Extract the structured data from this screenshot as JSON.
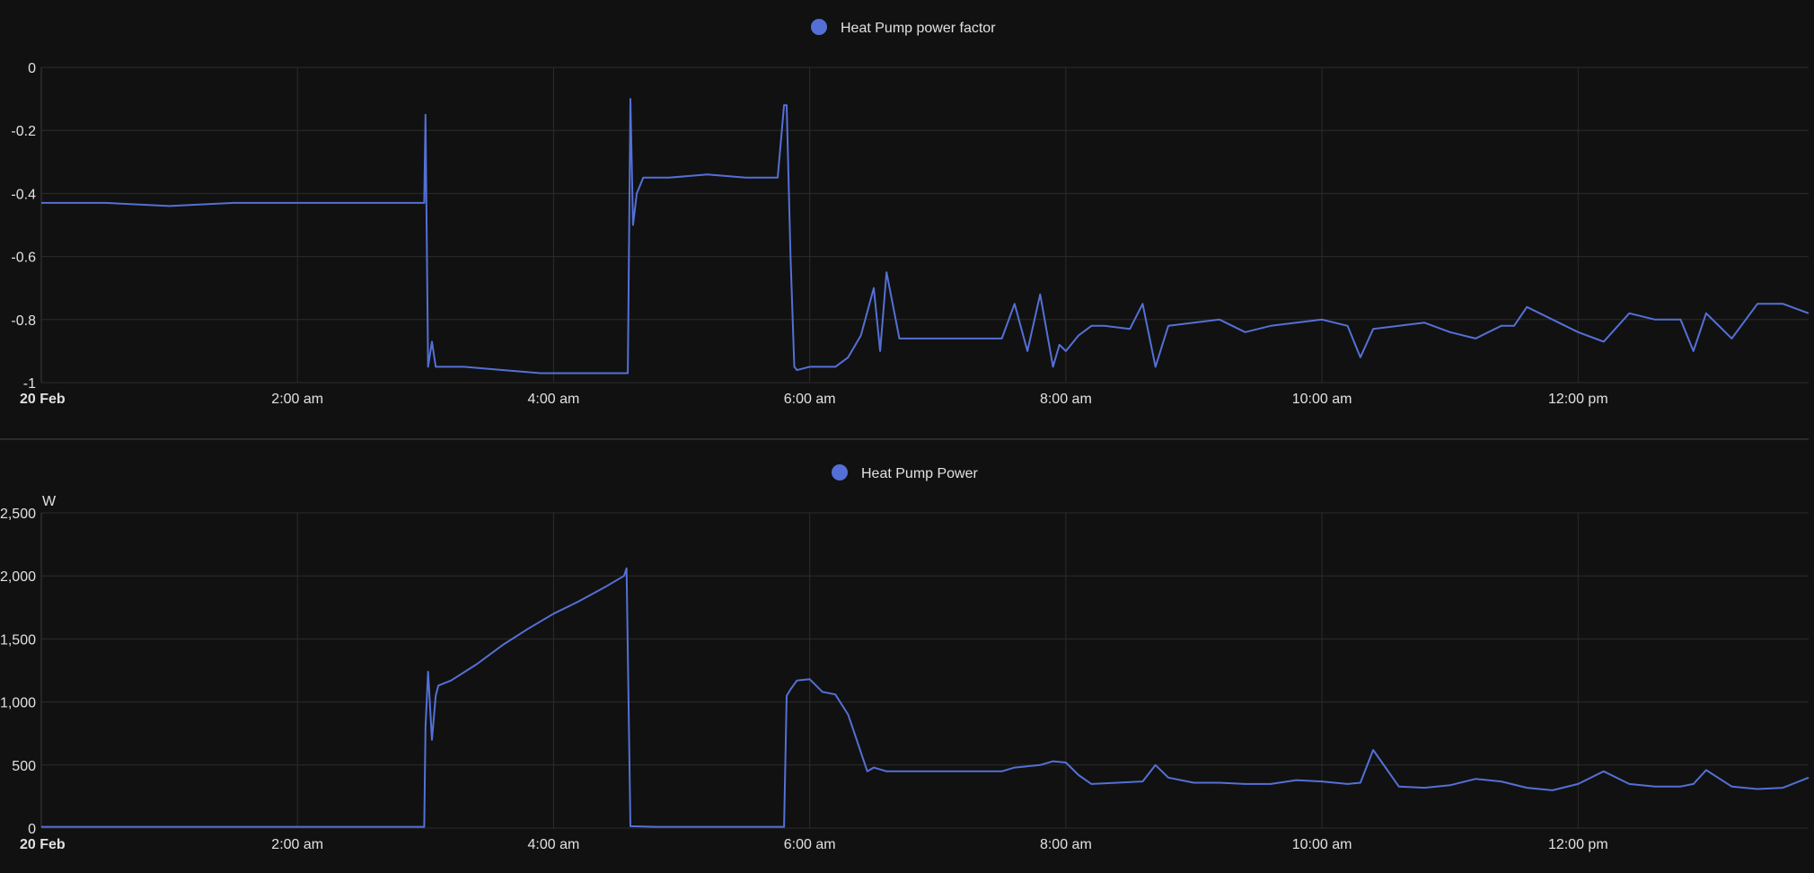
{
  "colors": {
    "background": "#111111",
    "series": "#5470d6",
    "grid": "#2c2c2c",
    "text": "#e1e1e1"
  },
  "chart_data": [
    {
      "type": "line",
      "legend": [
        "Heat Pump power factor"
      ],
      "legend_position": "top-center",
      "xlabel": "",
      "ylabel": "",
      "unit": "",
      "grid": true,
      "xlim": [
        0,
        13.8
      ],
      "ylim": [
        -1,
        0
      ],
      "x_ticks": [
        {
          "x": 0,
          "label": "20 Feb",
          "bold": true
        },
        {
          "x": 2,
          "label": "2:00 am",
          "bold": false
        },
        {
          "x": 4,
          "label": "4:00 am",
          "bold": false
        },
        {
          "x": 6,
          "label": "6:00 am",
          "bold": false
        },
        {
          "x": 8,
          "label": "8:00 am",
          "bold": false
        },
        {
          "x": 10,
          "label": "10:00 am",
          "bold": false
        },
        {
          "x": 12,
          "label": "12:00 pm",
          "bold": false
        }
      ],
      "y_ticks": [
        {
          "y": 0,
          "label": "0"
        },
        {
          "y": -0.2,
          "label": "-0.2"
        },
        {
          "y": -0.4,
          "label": "-0.4"
        },
        {
          "y": -0.6,
          "label": "-0.6"
        },
        {
          "y": -0.8,
          "label": "-0.8"
        },
        {
          "y": -1,
          "label": "-1"
        }
      ],
      "series": [
        {
          "name": "Heat Pump power factor",
          "x": [
            0,
            0.5,
            1.0,
            1.5,
            2.0,
            2.5,
            2.99,
            3.0,
            3.02,
            3.05,
            3.08,
            3.1,
            3.3,
            3.6,
            3.9,
            4.2,
            4.4,
            4.58,
            4.6,
            4.62,
            4.65,
            4.7,
            4.9,
            5.2,
            5.5,
            5.75,
            5.8,
            5.82,
            5.85,
            5.88,
            5.9,
            6.0,
            6.2,
            6.3,
            6.4,
            6.5,
            6.55,
            6.6,
            6.7,
            7.0,
            7.3,
            7.5,
            7.6,
            7.7,
            7.8,
            7.9,
            7.95,
            8.0,
            8.1,
            8.2,
            8.3,
            8.5,
            8.6,
            8.7,
            8.8,
            9.0,
            9.2,
            9.4,
            9.6,
            9.8,
            10.0,
            10.2,
            10.3,
            10.4,
            10.6,
            10.8,
            11.0,
            11.2,
            11.4,
            11.5,
            11.6,
            11.8,
            12.0,
            12.2,
            12.4,
            12.6,
            12.8,
            12.9,
            13.0,
            13.2,
            13.4,
            13.6,
            13.8
          ],
          "values": [
            -0.43,
            -0.43,
            -0.44,
            -0.43,
            -0.43,
            -0.43,
            -0.43,
            -0.15,
            -0.95,
            -0.87,
            -0.95,
            -0.95,
            -0.95,
            -0.96,
            -0.97,
            -0.97,
            -0.97,
            -0.97,
            -0.1,
            -0.5,
            -0.4,
            -0.35,
            -0.35,
            -0.34,
            -0.35,
            -0.35,
            -0.12,
            -0.12,
            -0.6,
            -0.95,
            -0.96,
            -0.95,
            -0.95,
            -0.92,
            -0.85,
            -0.7,
            -0.9,
            -0.65,
            -0.86,
            -0.86,
            -0.86,
            -0.86,
            -0.75,
            -0.9,
            -0.72,
            -0.95,
            -0.88,
            -0.9,
            -0.85,
            -0.82,
            -0.82,
            -0.83,
            -0.75,
            -0.95,
            -0.82,
            -0.81,
            -0.8,
            -0.84,
            -0.82,
            -0.81,
            -0.8,
            -0.82,
            -0.92,
            -0.83,
            -0.82,
            -0.81,
            -0.84,
            -0.86,
            -0.82,
            -0.82,
            -0.76,
            -0.8,
            -0.84,
            -0.87,
            -0.78,
            -0.8,
            -0.8,
            -0.9,
            -0.78,
            -0.86,
            -0.75,
            -0.75,
            -0.78
          ]
        }
      ]
    },
    {
      "type": "line",
      "legend": [
        "Heat Pump Power"
      ],
      "legend_position": "top-center",
      "xlabel": "",
      "ylabel": "",
      "unit": "W",
      "grid": true,
      "xlim": [
        0,
        13.8
      ],
      "ylim": [
        0,
        2500
      ],
      "x_ticks": [
        {
          "x": 0,
          "label": "20 Feb",
          "bold": true
        },
        {
          "x": 2,
          "label": "2:00 am",
          "bold": false
        },
        {
          "x": 4,
          "label": "4:00 am",
          "bold": false
        },
        {
          "x": 6,
          "label": "6:00 am",
          "bold": false
        },
        {
          "x": 8,
          "label": "8:00 am",
          "bold": false
        },
        {
          "x": 10,
          "label": "10:00 am",
          "bold": false
        },
        {
          "x": 12,
          "label": "12:00 pm",
          "bold": false
        }
      ],
      "y_ticks": [
        {
          "y": 2500,
          "label": "2,500"
        },
        {
          "y": 2000,
          "label": "2,000"
        },
        {
          "y": 1500,
          "label": "1,500"
        },
        {
          "y": 1000,
          "label": "1,000"
        },
        {
          "y": 500,
          "label": "500"
        },
        {
          "y": 0,
          "label": "0"
        }
      ],
      "series": [
        {
          "name": "Heat Pump Power",
          "x": [
            0,
            0.5,
            1.0,
            1.5,
            2.0,
            2.5,
            2.99,
            3.0,
            3.02,
            3.05,
            3.08,
            3.1,
            3.2,
            3.4,
            3.6,
            3.8,
            4.0,
            4.2,
            4.4,
            4.55,
            4.57,
            4.6,
            4.8,
            5.2,
            5.6,
            5.8,
            5.82,
            5.85,
            5.9,
            6.0,
            6.1,
            6.2,
            6.3,
            6.35,
            6.4,
            6.45,
            6.5,
            6.6,
            6.8,
            7.0,
            7.3,
            7.5,
            7.6,
            7.8,
            7.9,
            8.0,
            8.1,
            8.2,
            8.4,
            8.6,
            8.7,
            8.8,
            9.0,
            9.2,
            9.4,
            9.6,
            9.8,
            10.0,
            10.2,
            10.3,
            10.4,
            10.6,
            10.8,
            11.0,
            11.2,
            11.4,
            11.6,
            11.8,
            12.0,
            12.2,
            12.4,
            12.6,
            12.8,
            12.9,
            13.0,
            13.2,
            13.4,
            13.6,
            13.8
          ],
          "values": [
            10,
            10,
            10,
            10,
            10,
            10,
            10,
            800,
            1240,
            700,
            1050,
            1130,
            1170,
            1300,
            1450,
            1580,
            1700,
            1800,
            1910,
            2000,
            2060,
            15,
            10,
            10,
            10,
            10,
            1050,
            1100,
            1170,
            1180,
            1080,
            1060,
            900,
            750,
            600,
            450,
            480,
            450,
            450,
            450,
            450,
            450,
            480,
            500,
            530,
            520,
            420,
            350,
            360,
            370,
            500,
            400,
            360,
            360,
            350,
            350,
            380,
            370,
            350,
            360,
            620,
            330,
            320,
            340,
            390,
            370,
            320,
            300,
            350,
            450,
            350,
            330,
            330,
            350,
            460,
            330,
            310,
            320,
            400
          ]
        }
      ]
    }
  ]
}
